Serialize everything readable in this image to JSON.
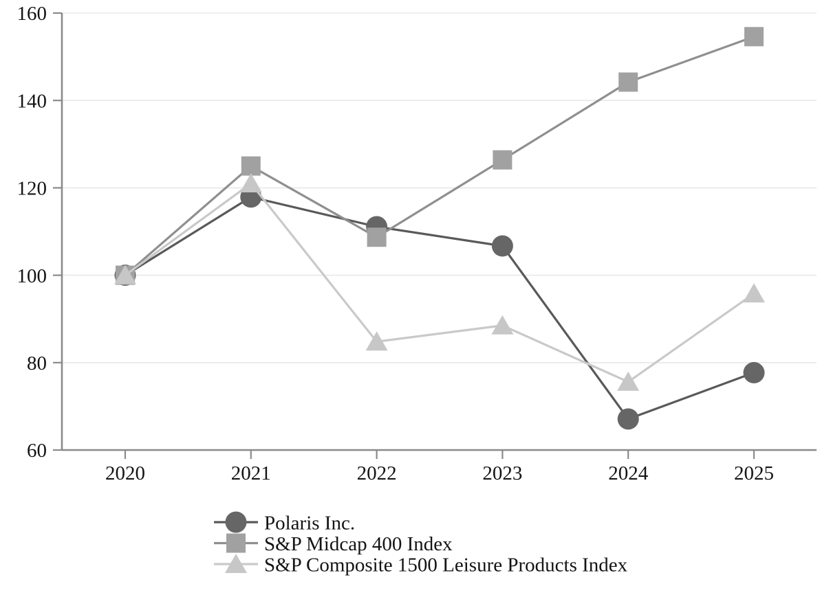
{
  "chart_data": {
    "type": "line",
    "title": "",
    "xlabel": "",
    "ylabel": "",
    "x": [
      "2020",
      "2021",
      "2022",
      "2023",
      "2024",
      "2025"
    ],
    "series": [
      {
        "name": "Polaris Inc.",
        "marker": "circle",
        "line_color": "#595959",
        "marker_color": "#666666",
        "values": [
          100,
          117.9,
          111.1,
          106.7,
          67.1,
          77.7
        ]
      },
      {
        "name": "S&P Midcap 400 Index",
        "marker": "square",
        "line_color": "#8f8f8f",
        "marker_color": "#a1a1a1",
        "values": [
          100,
          125.0,
          108.7,
          126.4,
          144.2,
          154.6
        ]
      },
      {
        "name": "S&P Composite 1500 Leisure Products Index",
        "marker": "triangle",
        "line_color": "#c9c9c9",
        "marker_color": "#c7c7c7",
        "values": [
          100,
          121.0,
          84.8,
          88.5,
          75.6,
          95.8
        ]
      }
    ],
    "ylim": [
      60,
      160
    ],
    "yticks": [
      "60",
      "80",
      "100",
      "120",
      "140",
      "160"
    ],
    "grid": "horizontal",
    "grid_color": "#e8e8e8",
    "axis_color": "#8a8a8a",
    "tick_label_color": "#141414",
    "background_color": "#ffffff",
    "legend_position": "bottom",
    "legend_labels": [
      "Polaris Inc.",
      "S&P Midcap 400 Index",
      "S&P Composite 1500 Leisure Products Index"
    ]
  }
}
